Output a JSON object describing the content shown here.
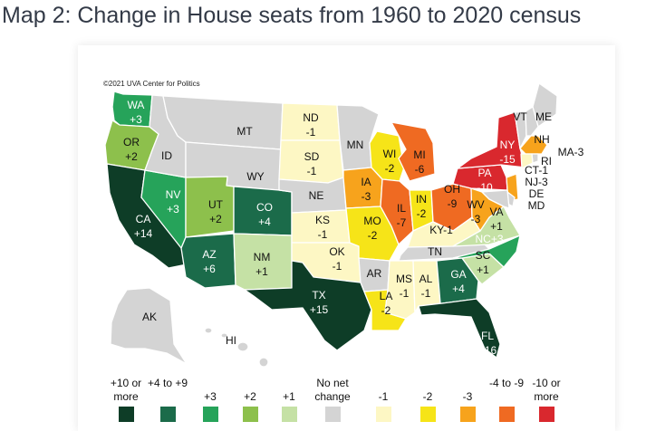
{
  "title": "Map 2: Change in House seats from 1960 to 2020 census",
  "credit": "©2021 UVA Center for Politics",
  "colors": {
    "p10": "#0e3d27",
    "p4": "#1b6b4a",
    "p3": "#26a35a",
    "p2": "#8dc04c",
    "p1": "#c5e1a5",
    "z": "#d4d4d4",
    "m1": "#fdf7c4",
    "m2": "#f6e418",
    "m3": "#f7a31c",
    "m4": "#ef6a22",
    "m10": "#d9282e"
  },
  "states": [
    {
      "code": "WA",
      "change": "+3",
      "cat": "p3"
    },
    {
      "code": "OR",
      "change": "+2",
      "cat": "p2"
    },
    {
      "code": "CA",
      "change": "+14",
      "cat": "p10"
    },
    {
      "code": "NV",
      "change": "+3",
      "cat": "p3"
    },
    {
      "code": "ID",
      "change": "",
      "cat": "z"
    },
    {
      "code": "MT",
      "change": "",
      "cat": "z"
    },
    {
      "code": "WY",
      "change": "",
      "cat": "z"
    },
    {
      "code": "UT",
      "change": "+2",
      "cat": "p2"
    },
    {
      "code": "AZ",
      "change": "+6",
      "cat": "p4"
    },
    {
      "code": "CO",
      "change": "+4",
      "cat": "p4"
    },
    {
      "code": "NM",
      "change": "+1",
      "cat": "p1"
    },
    {
      "code": "ND",
      "change": "-1",
      "cat": "m1"
    },
    {
      "code": "SD",
      "change": "-1",
      "cat": "m1"
    },
    {
      "code": "NE",
      "change": "",
      "cat": "z"
    },
    {
      "code": "KS",
      "change": "-1",
      "cat": "m1"
    },
    {
      "code": "OK",
      "change": "-1",
      "cat": "m1"
    },
    {
      "code": "TX",
      "change": "+15",
      "cat": "p10"
    },
    {
      "code": "MN",
      "change": "",
      "cat": "z"
    },
    {
      "code": "IA",
      "change": "-3",
      "cat": "m3"
    },
    {
      "code": "MO",
      "change": "-2",
      "cat": "m2"
    },
    {
      "code": "AR",
      "change": "",
      "cat": "z"
    },
    {
      "code": "LA",
      "change": "-2",
      "cat": "m2"
    },
    {
      "code": "WI",
      "change": "-2",
      "cat": "m2"
    },
    {
      "code": "IL",
      "change": "-7",
      "cat": "m4"
    },
    {
      "code": "MI",
      "change": "-6",
      "cat": "m4"
    },
    {
      "code": "IN",
      "change": "-2",
      "cat": "m2"
    },
    {
      "code": "OH",
      "change": "-9",
      "cat": "m4"
    },
    {
      "code": "KY",
      "change": "-1",
      "cat": "m1"
    },
    {
      "code": "TN",
      "change": "",
      "cat": "z"
    },
    {
      "code": "MS",
      "change": "-1",
      "cat": "m1"
    },
    {
      "code": "AL",
      "change": "-1",
      "cat": "m1"
    },
    {
      "code": "GA",
      "change": "+4",
      "cat": "p4"
    },
    {
      "code": "FL",
      "change": "+16",
      "cat": "p10"
    },
    {
      "code": "SC",
      "change": "+1",
      "cat": "p1"
    },
    {
      "code": "NC",
      "change": "+3",
      "cat": "p3"
    },
    {
      "code": "VA",
      "change": "+1",
      "cat": "p1"
    },
    {
      "code": "WV",
      "change": "-3",
      "cat": "m3"
    },
    {
      "code": "PA",
      "change": "-10",
      "cat": "m10"
    },
    {
      "code": "NY",
      "change": "-15",
      "cat": "m10"
    },
    {
      "code": "VT",
      "change": "",
      "cat": "z"
    },
    {
      "code": "ME",
      "change": "",
      "cat": "z"
    },
    {
      "code": "NH",
      "change": "",
      "cat": "z"
    },
    {
      "code": "MA",
      "change": "-3",
      "cat": "m3"
    },
    {
      "code": "RI",
      "change": "",
      "cat": "z"
    },
    {
      "code": "CT",
      "change": "-1",
      "cat": "m1"
    },
    {
      "code": "NJ",
      "change": "-3",
      "cat": "m3"
    },
    {
      "code": "DE",
      "change": "",
      "cat": "z"
    },
    {
      "code": "MD",
      "change": "",
      "cat": "z"
    },
    {
      "code": "AK",
      "change": "",
      "cat": "z"
    },
    {
      "code": "HI",
      "change": "",
      "cat": "z"
    }
  ],
  "outer_labels": [
    {
      "text": "VT"
    },
    {
      "text": "ME"
    },
    {
      "text": "NH"
    },
    {
      "text": "MA-3"
    },
    {
      "text": "RI"
    },
    {
      "text": "CT-1"
    },
    {
      "text": "NJ-3"
    },
    {
      "text": "DE"
    },
    {
      "text": "MD"
    },
    {
      "text": "KY-1"
    },
    {
      "text": "NC+3"
    },
    {
      "text": "HI"
    }
  ],
  "legend": [
    {
      "label": "+10 or more",
      "cat": "p10"
    },
    {
      "label": "+4 to +9",
      "cat": "p4"
    },
    {
      "label": "+3",
      "cat": "p3"
    },
    {
      "label": "+2",
      "cat": "p2"
    },
    {
      "label": "+1",
      "cat": "p1"
    },
    {
      "label": "No net change",
      "cat": "z"
    },
    {
      "label": "-1",
      "cat": "m1"
    },
    {
      "label": "-2",
      "cat": "m2"
    },
    {
      "label": "-3",
      "cat": "m3"
    },
    {
      "label": "-4 to -9",
      "cat": "m4"
    },
    {
      "label": "-10 or more",
      "cat": "m10"
    }
  ]
}
